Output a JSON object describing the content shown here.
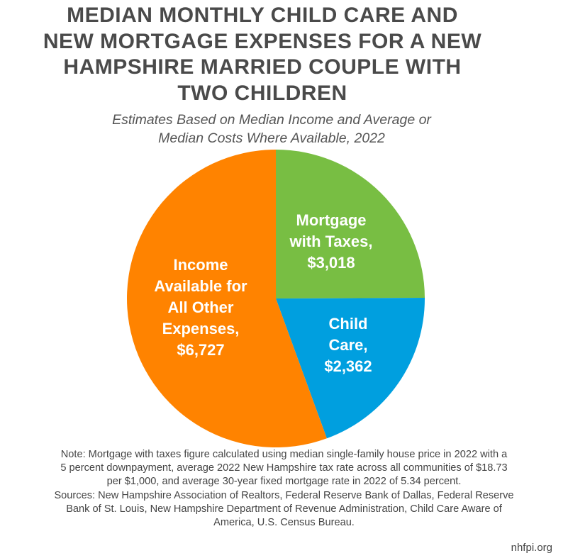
{
  "chart_data": {
    "type": "pie",
    "title_lines": [
      "MEDIAN MONTHLY CHILD CARE AND",
      "NEW MORTGAGE EXPENSES FOR A NEW",
      "HAMPSHIRE MARRIED COUPLE WITH",
      "TWO CHILDREN"
    ],
    "subtitle_lines": [
      "Estimates Based on Median Income and Average or",
      "Median Costs Where Available, 2022"
    ],
    "slices": [
      {
        "label_lines": [
          "Mortgage",
          "with Taxes,",
          "$3,018"
        ],
        "value": 3018,
        "color": "#78be43"
      },
      {
        "label_lines": [
          "Child",
          "Care,",
          "$2,362"
        ],
        "value": 2362,
        "color": "#009fdf"
      },
      {
        "label_lines": [
          "Income",
          "Available for",
          "All Other",
          "Expenses,",
          "$6,727"
        ],
        "value": 6727,
        "color": "#ff8300"
      }
    ],
    "start": "top",
    "direction": "clockwise"
  },
  "note_lines": [
    "Note: Mortgage with taxes figure calculated using median single-family house price in 2022 with a",
    "5 percent downpayment, average 2022 New Hampshire tax rate across all communities of $18.73",
    "per $1,000, and average 30-year fixed mortgage rate in 2022 of 5.34 percent.",
    "Sources: New Hampshire Association of Realtors, Federal Reserve Bank of Dallas, Federal Reserve",
    "Bank of St. Louis, New Hampshire Department of Revenue Administration, Child Care Aware of",
    "America, U.S. Census Bureau."
  ],
  "site": "nhfpi.org"
}
